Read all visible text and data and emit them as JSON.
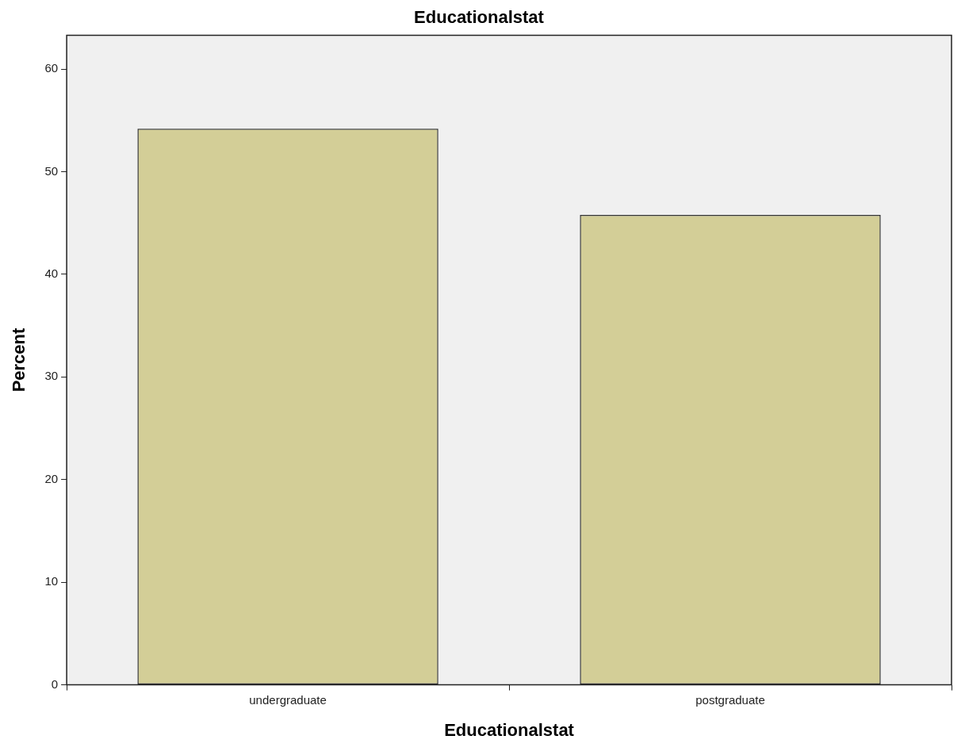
{
  "chart_data": {
    "type": "bar",
    "title": "Educationalstat",
    "xlabel": "Educationalstat",
    "ylabel": "Percent",
    "categories": [
      "undergraduate",
      "postgraduate"
    ],
    "values": [
      54.2,
      45.8
    ],
    "color": "#d3ce97",
    "ylim": [
      0,
      63.3
    ],
    "yticks": [
      0,
      10,
      20,
      30,
      40,
      50,
      60
    ]
  }
}
